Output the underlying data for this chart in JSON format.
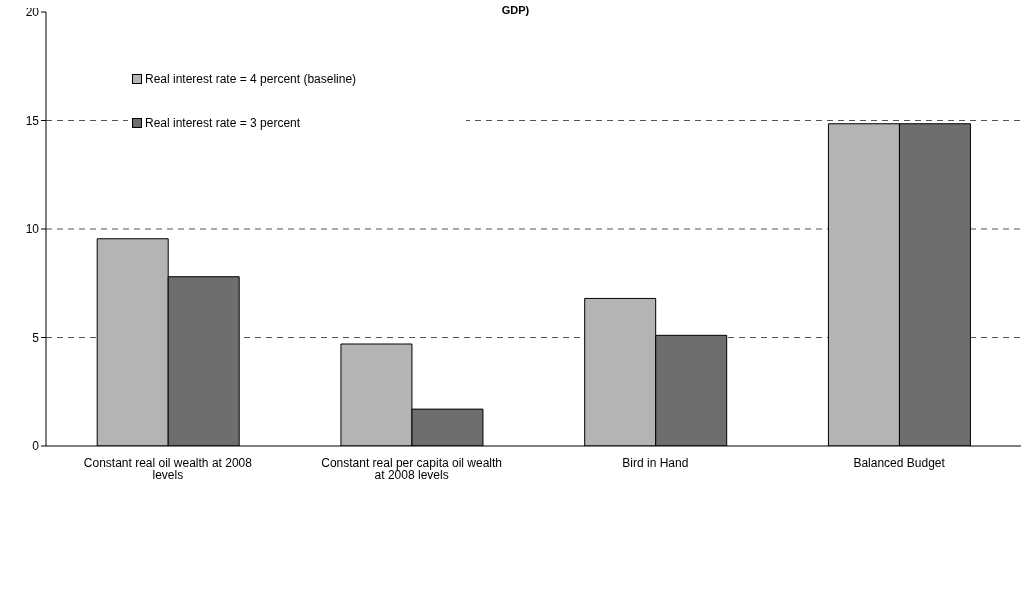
{
  "chart_data": {
    "type": "bar",
    "title": "GDP)",
    "categories": [
      "Constant real oil wealth at 2008 levels",
      "Constant real per capita oil wealth at 2008 levels",
      "Bird in Hand",
      "Balanced Budget"
    ],
    "series": [
      {
        "name": "Real interest rate = 4 percent (baseline)",
        "color": "#b4b4b4",
        "values": [
          9.55,
          4.7,
          6.8,
          14.85
        ]
      },
      {
        "name": "Real interest rate = 3 percent",
        "color": "#6e6e6e",
        "values": [
          7.8,
          1.7,
          5.1,
          14.85
        ]
      }
    ],
    "ylim": [
      0,
      20
    ],
    "yticks": [
      0,
      5,
      10,
      15,
      20
    ],
    "grid": "y",
    "legend": "top left"
  }
}
